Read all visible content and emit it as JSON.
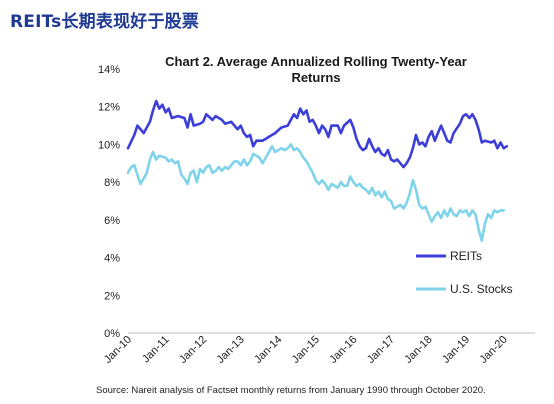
{
  "page_title": "REITs长期表现好于股票",
  "chart_data": {
    "type": "line",
    "title": [
      "Chart 2. Average Annualized Rolling Twenty-Year",
      "Returns"
    ],
    "xlabel": "",
    "ylabel": "",
    "x_tick_labels": [
      "Jan-10",
      "Jan-11",
      "Jan-12",
      "Jan-13",
      "Jan-14",
      "Jan-15",
      "Jan-16",
      "Jan-17",
      "Jan-18",
      "Jan-19",
      "Jan-20"
    ],
    "y_tick_labels": [
      "0%",
      "2%",
      "4%",
      "6%",
      "8%",
      "10%",
      "12%",
      "14%"
    ],
    "ylim": [
      0,
      14
    ],
    "x_range_months": [
      0,
      130
    ],
    "grid": false,
    "legend_position": "lower-right",
    "source": "Source: Nareit analysis of Factset monthly returns from January 1990 through October 2020.",
    "series": [
      {
        "name": "REITs",
        "color": "#3b3fd8",
        "points": [
          [
            0,
            9.8
          ],
          [
            2,
            10.5
          ],
          [
            3,
            11.0
          ],
          [
            5,
            10.6
          ],
          [
            7,
            11.2
          ],
          [
            8,
            11.8
          ],
          [
            9,
            12.3
          ],
          [
            10,
            11.9
          ],
          [
            11,
            12.1
          ],
          [
            12,
            11.7
          ],
          [
            13,
            11.9
          ],
          [
            14,
            11.4
          ],
          [
            16,
            11.5
          ],
          [
            18,
            11.4
          ],
          [
            19,
            10.9
          ],
          [
            20,
            11.6
          ],
          [
            21,
            11.0
          ],
          [
            23,
            11.1
          ],
          [
            24,
            11.2
          ],
          [
            25,
            11.6
          ],
          [
            27,
            11.3
          ],
          [
            28,
            11.5
          ],
          [
            30,
            11.3
          ],
          [
            31,
            11.1
          ],
          [
            33,
            11.2
          ],
          [
            35,
            10.8
          ],
          [
            36,
            11.0
          ],
          [
            37,
            10.6
          ],
          [
            38,
            10.4
          ],
          [
            39,
            10.5
          ],
          [
            40,
            9.9
          ],
          [
            41,
            10.2
          ],
          [
            43,
            10.2
          ],
          [
            45,
            10.4
          ],
          [
            47,
            10.6
          ],
          [
            49,
            10.9
          ],
          [
            51,
            11.0
          ],
          [
            53,
            11.6
          ],
          [
            54,
            11.4
          ],
          [
            55,
            11.9
          ],
          [
            56,
            11.6
          ],
          [
            57,
            11.8
          ],
          [
            58,
            11.2
          ],
          [
            59,
            11.3
          ],
          [
            60,
            11.0
          ],
          [
            61,
            10.6
          ],
          [
            62,
            11.0
          ],
          [
            63,
            10.8
          ],
          [
            64,
            10.4
          ],
          [
            65,
            11.0
          ],
          [
            67,
            11.0
          ],
          [
            68,
            10.6
          ],
          [
            69,
            11.0
          ],
          [
            71,
            11.3
          ],
          [
            72,
            10.9
          ],
          [
            73,
            10.3
          ],
          [
            74,
            9.9
          ],
          [
            75,
            9.7
          ],
          [
            76,
            9.8
          ],
          [
            77,
            10.3
          ],
          [
            78,
            9.9
          ],
          [
            79,
            9.6
          ],
          [
            80,
            9.8
          ],
          [
            81,
            9.5
          ],
          [
            82,
            9.4
          ],
          [
            83,
            9.7
          ],
          [
            84,
            9.2
          ],
          [
            85,
            9.1
          ],
          [
            86,
            9.2
          ],
          [
            87,
            9.0
          ],
          [
            88,
            8.8
          ],
          [
            89,
            9.0
          ],
          [
            90,
            9.3
          ],
          [
            91,
            9.8
          ],
          [
            92,
            10.5
          ],
          [
            93,
            10.0
          ],
          [
            94,
            10.1
          ],
          [
            95,
            9.9
          ],
          [
            96,
            10.4
          ],
          [
            97,
            10.7
          ],
          [
            98,
            10.2
          ],
          [
            99,
            10.6
          ],
          [
            100,
            11.0
          ],
          [
            101,
            10.6
          ],
          [
            102,
            10.2
          ],
          [
            103,
            10.1
          ],
          [
            104,
            10.6
          ],
          [
            106,
            11.1
          ],
          [
            107,
            11.5
          ],
          [
            108,
            11.6
          ],
          [
            109,
            11.4
          ],
          [
            110,
            11.6
          ],
          [
            111,
            11.3
          ],
          [
            112,
            10.8
          ],
          [
            113,
            10.1
          ],
          [
            114,
            10.2
          ],
          [
            116,
            10.1
          ],
          [
            117,
            10.2
          ],
          [
            118,
            9.8
          ],
          [
            119,
            10.1
          ],
          [
            120,
            9.8
          ],
          [
            121,
            9.9
          ]
        ]
      },
      {
        "name": "U.S. Stocks",
        "color": "#7fd3ea",
        "points": [
          [
            0,
            8.5
          ],
          [
            1,
            8.8
          ],
          [
            2,
            8.9
          ],
          [
            3,
            8.4
          ],
          [
            4,
            7.9
          ],
          [
            5,
            8.2
          ],
          [
            6,
            8.5
          ],
          [
            7,
            9.2
          ],
          [
            8,
            9.6
          ],
          [
            9,
            9.2
          ],
          [
            10,
            9.4
          ],
          [
            12,
            9.3
          ],
          [
            13,
            9.1
          ],
          [
            14,
            9.2
          ],
          [
            15,
            9.0
          ],
          [
            16,
            9.1
          ],
          [
            17,
            8.4
          ],
          [
            18,
            8.2
          ],
          [
            19,
            7.9
          ],
          [
            20,
            8.5
          ],
          [
            21,
            8.6
          ],
          [
            22,
            8.0
          ],
          [
            23,
            8.7
          ],
          [
            24,
            8.5
          ],
          [
            25,
            8.8
          ],
          [
            26,
            8.9
          ],
          [
            27,
            8.5
          ],
          [
            28,
            8.6
          ],
          [
            29,
            8.8
          ],
          [
            30,
            8.6
          ],
          [
            31,
            8.8
          ],
          [
            32,
            8.7
          ],
          [
            33,
            8.9
          ],
          [
            34,
            9.1
          ],
          [
            35,
            9.1
          ],
          [
            36,
            8.9
          ],
          [
            37,
            9.2
          ],
          [
            38,
            8.9
          ],
          [
            39,
            9.1
          ],
          [
            40,
            9.5
          ],
          [
            41,
            9.4
          ],
          [
            42,
            9.3
          ],
          [
            43,
            9.0
          ],
          [
            44,
            9.3
          ],
          [
            45,
            9.6
          ],
          [
            46,
            9.9
          ],
          [
            47,
            9.6
          ],
          [
            48,
            9.7
          ],
          [
            49,
            9.8
          ],
          [
            50,
            9.7
          ],
          [
            51,
            9.8
          ],
          [
            52,
            10.0
          ],
          [
            53,
            9.7
          ],
          [
            54,
            9.8
          ],
          [
            55,
            9.6
          ],
          [
            56,
            9.3
          ],
          [
            57,
            9.1
          ],
          [
            58,
            8.8
          ],
          [
            59,
            8.5
          ],
          [
            60,
            8.1
          ],
          [
            61,
            7.9
          ],
          [
            62,
            8.1
          ],
          [
            63,
            7.9
          ],
          [
            64,
            7.6
          ],
          [
            65,
            7.9
          ],
          [
            66,
            7.8
          ],
          [
            67,
            7.7
          ],
          [
            68,
            8.0
          ],
          [
            69,
            7.8
          ],
          [
            70,
            7.8
          ],
          [
            71,
            8.3
          ],
          [
            72,
            8.0
          ],
          [
            73,
            7.8
          ],
          [
            74,
            7.9
          ],
          [
            75,
            7.7
          ],
          [
            76,
            7.6
          ],
          [
            77,
            7.4
          ],
          [
            78,
            7.7
          ],
          [
            79,
            7.3
          ],
          [
            80,
            7.5
          ],
          [
            81,
            7.2
          ],
          [
            82,
            7.5
          ],
          [
            83,
            7.1
          ],
          [
            84,
            7.0
          ],
          [
            85,
            6.6
          ],
          [
            86,
            6.7
          ],
          [
            87,
            6.8
          ],
          [
            88,
            6.6
          ],
          [
            89,
            6.9
          ],
          [
            90,
            7.4
          ],
          [
            91,
            8.1
          ],
          [
            92,
            7.6
          ],
          [
            93,
            6.8
          ],
          [
            94,
            6.6
          ],
          [
            95,
            6.7
          ],
          [
            96,
            6.3
          ],
          [
            97,
            5.9
          ],
          [
            98,
            6.2
          ],
          [
            99,
            6.4
          ],
          [
            100,
            6.1
          ],
          [
            101,
            6.5
          ],
          [
            102,
            6.2
          ],
          [
            103,
            6.6
          ],
          [
            104,
            6.3
          ],
          [
            105,
            6.2
          ],
          [
            106,
            6.5
          ],
          [
            107,
            6.4
          ],
          [
            108,
            6.5
          ],
          [
            109,
            6.2
          ],
          [
            110,
            6.5
          ],
          [
            111,
            6.3
          ],
          [
            112,
            5.5
          ],
          [
            113,
            4.9
          ],
          [
            114,
            5.8
          ],
          [
            115,
            6.3
          ],
          [
            116,
            6.1
          ],
          [
            117,
            6.5
          ],
          [
            118,
            6.4
          ],
          [
            119,
            6.5
          ],
          [
            120,
            6.5
          ]
        ]
      }
    ]
  }
}
